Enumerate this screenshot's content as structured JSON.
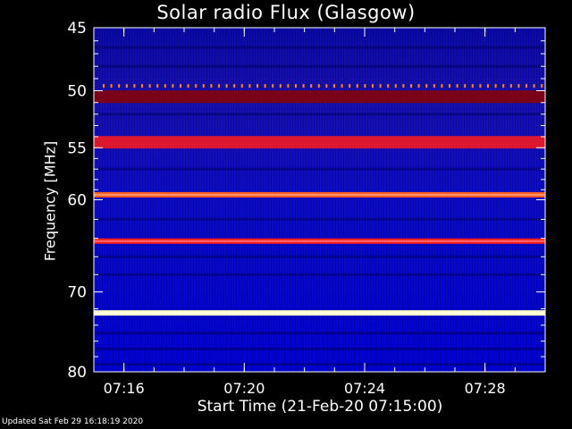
{
  "chart_data": {
    "type": "heatmap",
    "title": "Solar radio Flux (Glasgow)",
    "xlabel": "Start Time (21-Feb-20 07:15:00)",
    "ylabel": "Frequency [MHz]",
    "x_range": [
      "07:15:00",
      "07:30:00"
    ],
    "y_range_mhz": [
      45,
      80
    ],
    "y_scale": "log",
    "x_tick_labels": [
      "07:16",
      "07:20",
      "07:24",
      "07:28"
    ],
    "y_tick_labels": [
      "45",
      "50",
      "55",
      "60",
      "70",
      "80"
    ],
    "features": [
      {
        "frequency_mhz": 49.6,
        "kind": "periodic dots",
        "color": "#ff8c00"
      },
      {
        "frequency_mhz": 50.5,
        "kind": "band",
        "color": "#8b0000"
      },
      {
        "frequency_mhz": 54.5,
        "kind": "band",
        "color": "#ff1a1a"
      },
      {
        "frequency_mhz": 59.5,
        "kind": "line",
        "color": "#ff5a1e"
      },
      {
        "frequency_mhz": 64.3,
        "kind": "line",
        "color": "#ff1a1a"
      },
      {
        "frequency_mhz": 72.5,
        "kind": "line",
        "color": "#ffffc8"
      }
    ],
    "colors": {
      "background": "#000000",
      "low": "#0000c8",
      "mid": "#8b0000",
      "high": "#ff0000",
      "peak": "#ffffff"
    }
  },
  "footer": "Updated Sat Feb 29 16:18:19 2020"
}
